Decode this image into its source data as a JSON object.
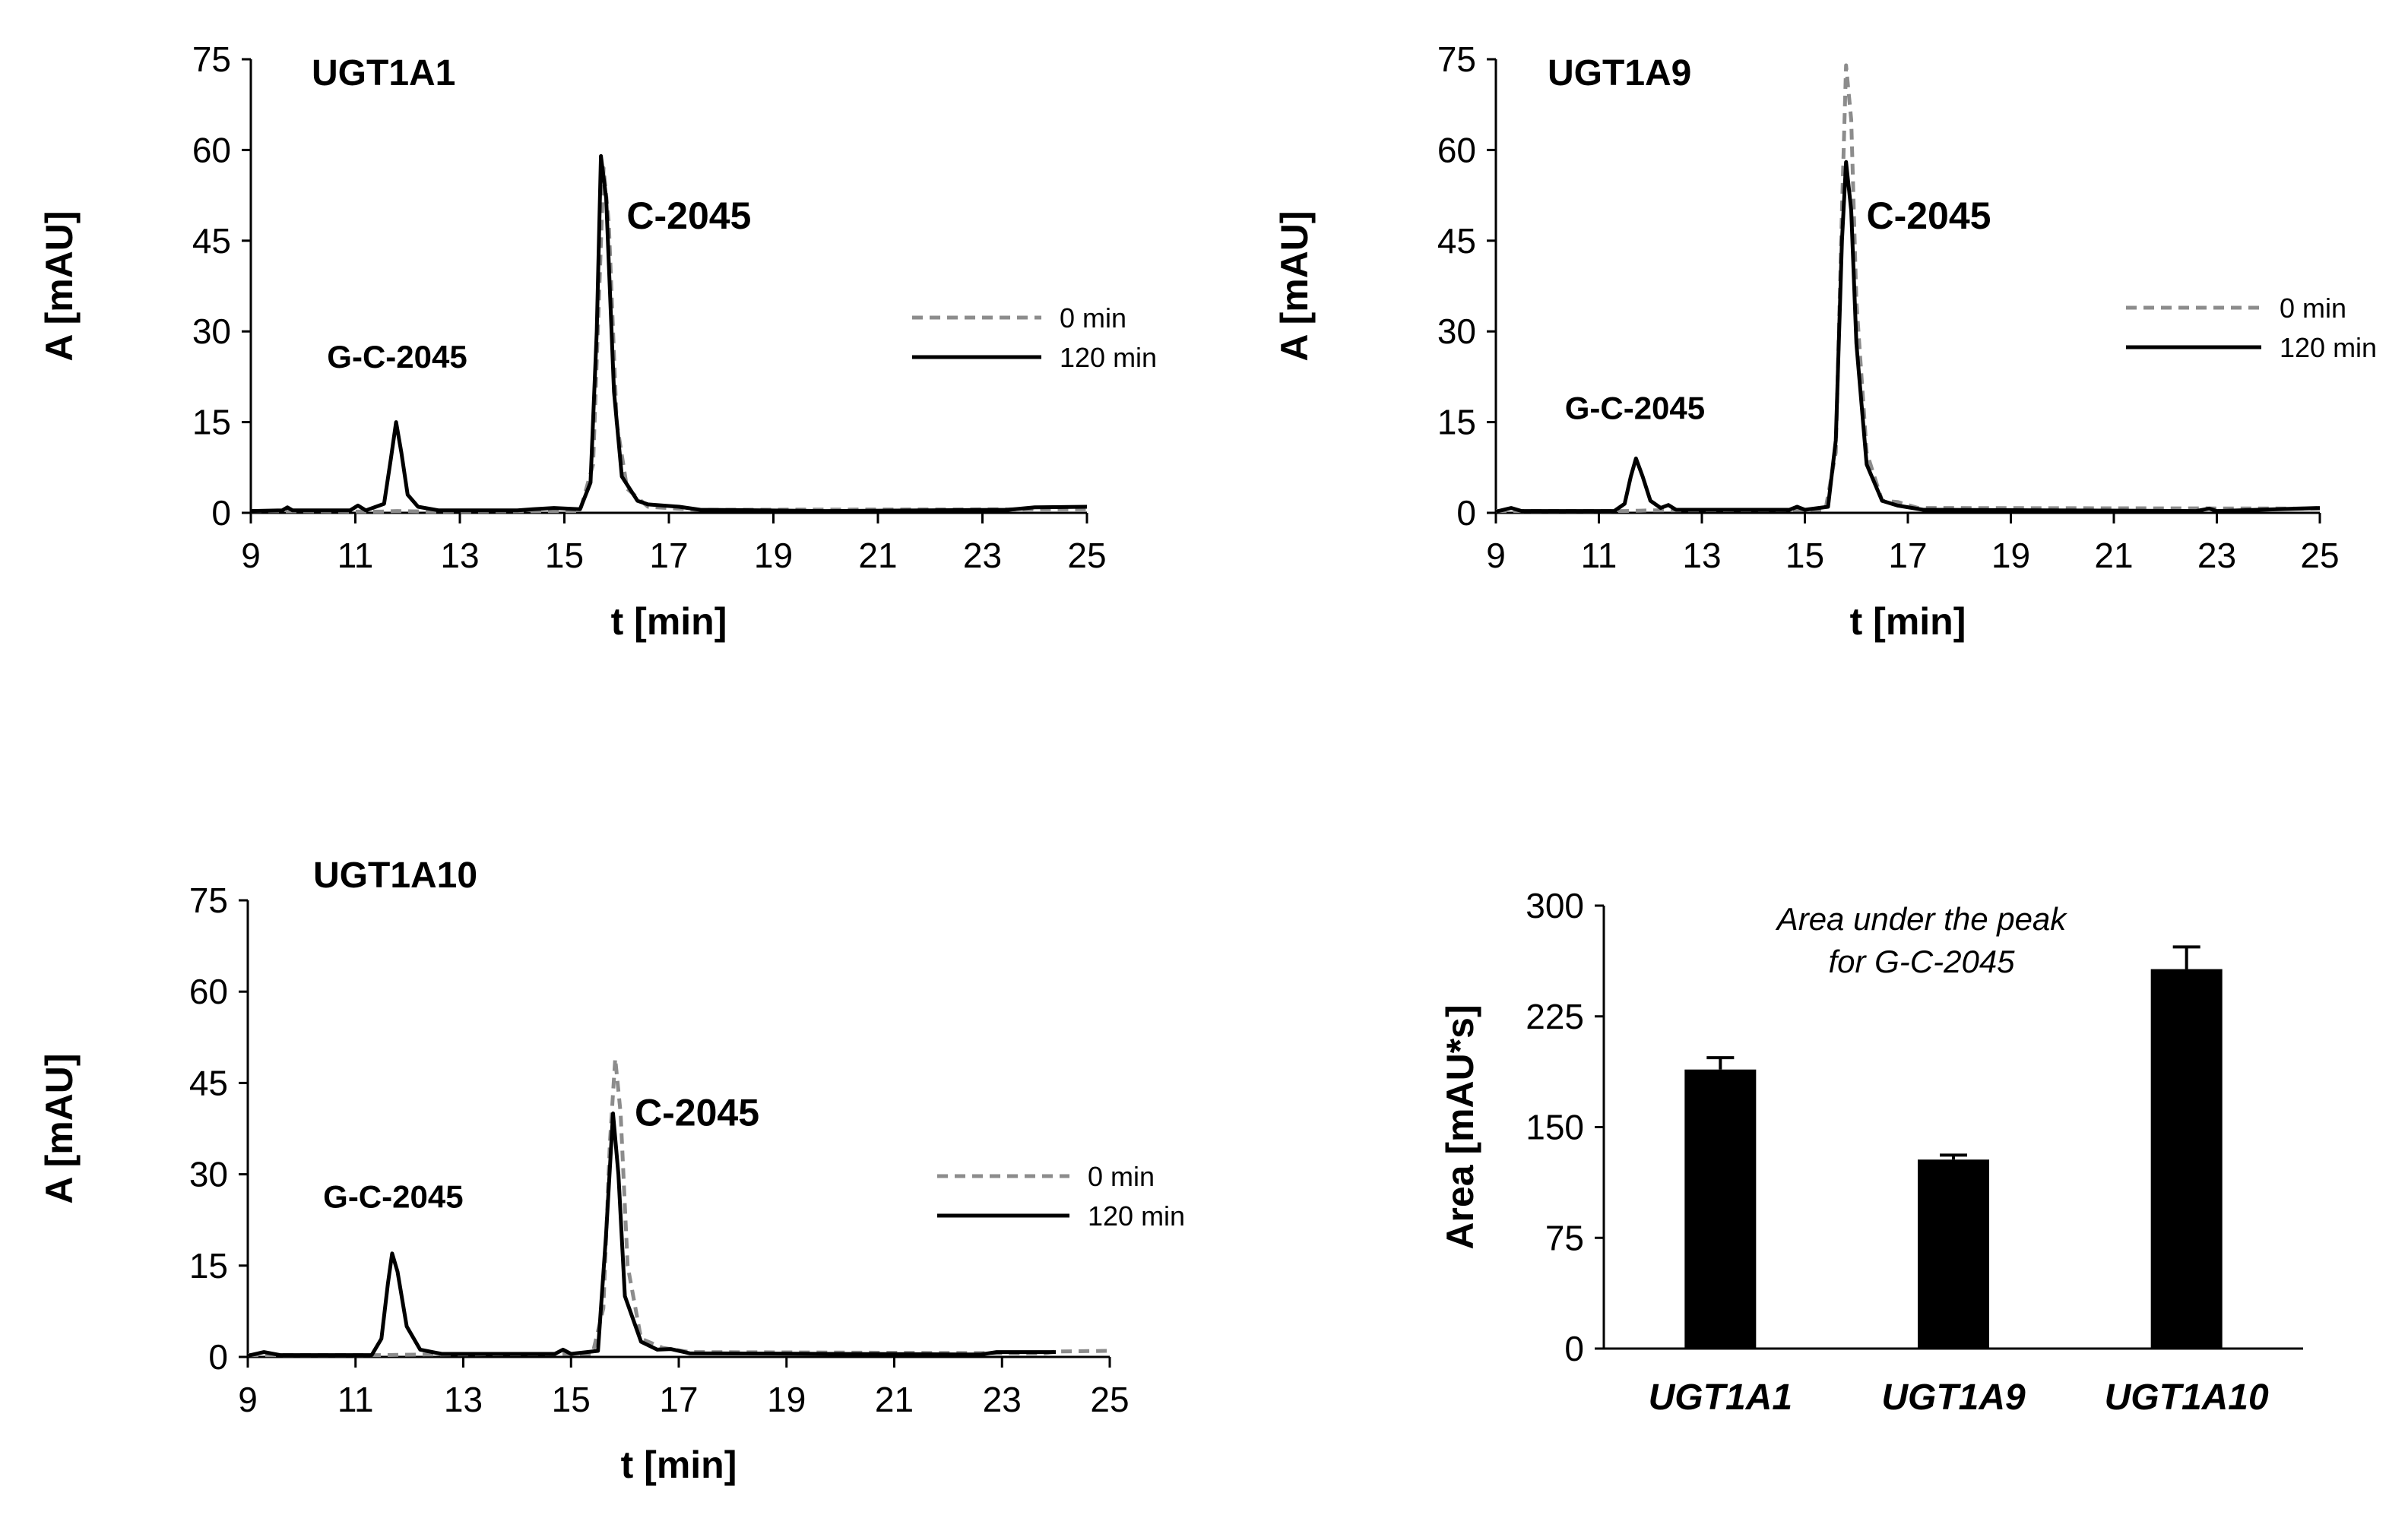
{
  "colors": {
    "black": "#000000",
    "gray": "#8c8c8c"
  },
  "chart_data": [
    {
      "type": "line",
      "id": "ugt1a1",
      "title": "UGT1A1",
      "xlabel": "t [min]",
      "ylabel": "A [mAU]",
      "xlim": [
        9,
        25
      ],
      "ylim": [
        0,
        75
      ],
      "xticks": [
        "9",
        "11",
        "13",
        "15",
        "17",
        "19",
        "21",
        "23",
        "25"
      ],
      "yticks": [
        "0",
        "15",
        "30",
        "45",
        "60",
        "75"
      ],
      "legend": {
        "position": "right",
        "items": [
          "0 min",
          "120 min"
        ]
      },
      "annotations": [
        {
          "text": "G-C-2045",
          "x": 11.8,
          "y": 24
        },
        {
          "text": "C-2045",
          "x": 16.6,
          "y": 47
        }
      ],
      "series": [
        {
          "name": "0 min",
          "style": "dashed",
          "color": "gray",
          "points": [
            [
              9,
              0.3
            ],
            [
              11.5,
              0.2
            ],
            [
              11.8,
              0.3
            ],
            [
              12.5,
              0.2
            ],
            [
              15.3,
              0.3
            ],
            [
              15.55,
              8
            ],
            [
              15.68,
              40
            ],
            [
              15.75,
              57
            ],
            [
              15.85,
              48
            ],
            [
              16.0,
              15
            ],
            [
              16.2,
              4
            ],
            [
              16.6,
              1
            ],
            [
              17.5,
              0.5
            ],
            [
              25,
              0.6
            ]
          ]
        },
        {
          "name": "120 min",
          "style": "solid",
          "color": "black",
          "points": [
            [
              9,
              0.3
            ],
            [
              9.6,
              0.4
            ],
            [
              9.7,
              0.9
            ],
            [
              9.8,
              0.4
            ],
            [
              10.9,
              0.4
            ],
            [
              11.05,
              1.2
            ],
            [
              11.2,
              0.4
            ],
            [
              11.55,
              1.5
            ],
            [
              11.68,
              9
            ],
            [
              11.78,
              15
            ],
            [
              11.88,
              10
            ],
            [
              12.0,
              3
            ],
            [
              12.2,
              1
            ],
            [
              12.6,
              0.4
            ],
            [
              14.1,
              0.4
            ],
            [
              14.4,
              0.6
            ],
            [
              14.8,
              0.8
            ],
            [
              15.3,
              0.6
            ],
            [
              15.5,
              5
            ],
            [
              15.62,
              30
            ],
            [
              15.7,
              59
            ],
            [
              15.8,
              52
            ],
            [
              15.95,
              20
            ],
            [
              16.1,
              6
            ],
            [
              16.4,
              2
            ],
            [
              16.6,
              1.4
            ],
            [
              17.2,
              1
            ],
            [
              17.6,
              0.5
            ],
            [
              20,
              0.3
            ],
            [
              23.5,
              0.5
            ],
            [
              24,
              0.9
            ],
            [
              25,
              1.0
            ]
          ]
        }
      ]
    },
    {
      "type": "line",
      "id": "ugt1a9",
      "title": "UGT1A9",
      "xlabel": "t [min]",
      "ylabel": "A [mAU]",
      "xlim": [
        9,
        25
      ],
      "ylim": [
        0,
        75
      ],
      "xticks": [
        "9",
        "11",
        "13",
        "15",
        "17",
        "19",
        "21",
        "23",
        "25"
      ],
      "yticks": [
        "0",
        "15",
        "30",
        "45",
        "60",
        "75"
      ],
      "legend": {
        "position": "right",
        "items": [
          "0 min",
          "120 min"
        ]
      },
      "annotations": [
        {
          "text": "G-C-2045",
          "x": 11.7,
          "y": 15.5
        },
        {
          "text": "C-2045",
          "x": 16.7,
          "y": 47
        }
      ],
      "series": [
        {
          "name": "0 min",
          "style": "dashed",
          "color": "gray",
          "points": [
            [
              9,
              0.3
            ],
            [
              11.5,
              0.3
            ],
            [
              12.0,
              0.4
            ],
            [
              15.4,
              0.5
            ],
            [
              15.6,
              10
            ],
            [
              15.72,
              50
            ],
            [
              15.8,
              74
            ],
            [
              15.9,
              65
            ],
            [
              16.0,
              35
            ],
            [
              16.2,
              10
            ],
            [
              16.5,
              2
            ],
            [
              16.8,
              1.8
            ],
            [
              17.2,
              0.8
            ],
            [
              25,
              0.7
            ]
          ]
        },
        {
          "name": "120 min",
          "style": "solid",
          "color": "black",
          "points": [
            [
              9,
              0.2
            ],
            [
              9.3,
              0.8
            ],
            [
              9.5,
              0.3
            ],
            [
              11.3,
              0.3
            ],
            [
              11.5,
              1.5
            ],
            [
              11.62,
              6
            ],
            [
              11.72,
              9
            ],
            [
              11.85,
              6
            ],
            [
              12.0,
              2
            ],
            [
              12.2,
              0.8
            ],
            [
              12.35,
              1.3
            ],
            [
              12.5,
              0.5
            ],
            [
              14.7,
              0.5
            ],
            [
              14.85,
              1.0
            ],
            [
              15.0,
              0.5
            ],
            [
              15.45,
              1
            ],
            [
              15.6,
              12
            ],
            [
              15.72,
              45
            ],
            [
              15.8,
              58
            ],
            [
              15.9,
              50
            ],
            [
              16.0,
              28
            ],
            [
              16.2,
              8
            ],
            [
              16.5,
              2
            ],
            [
              16.8,
              1.2
            ],
            [
              17.3,
              0.5
            ],
            [
              22.6,
              0.3
            ],
            [
              22.85,
              0.7
            ],
            [
              23.0,
              0.3
            ],
            [
              25,
              0.8
            ]
          ]
        }
      ]
    },
    {
      "type": "line",
      "id": "ugt1a10",
      "title": "UGT1A10",
      "xlabel": "t [min]",
      "ylabel": "A [mAU]",
      "xlim": [
        9,
        25
      ],
      "ylim": [
        0,
        75
      ],
      "xticks": [
        "9",
        "11",
        "13",
        "15",
        "17",
        "19",
        "21",
        "23",
        "25"
      ],
      "yticks": [
        "0",
        "15",
        "30",
        "45",
        "60",
        "75"
      ],
      "legend": {
        "position": "right",
        "items": [
          "0 min",
          "120 min"
        ]
      },
      "annotations": [
        {
          "text": "G-C-2045",
          "x": 11.7,
          "y": 24.5
        },
        {
          "text": "C-2045",
          "x": 16.8,
          "y": 38
        }
      ],
      "series": [
        {
          "name": "0 min",
          "style": "dashed",
          "color": "gray",
          "points": [
            [
              9,
              0.3
            ],
            [
              11.5,
              0.3
            ],
            [
              12.3,
              0.4
            ],
            [
              15.4,
              0.5
            ],
            [
              15.6,
              8
            ],
            [
              15.72,
              35
            ],
            [
              15.82,
              49
            ],
            [
              15.92,
              40
            ],
            [
              16.05,
              15
            ],
            [
              16.3,
              3
            ],
            [
              16.7,
              1.5
            ],
            [
              17.2,
              0.8
            ],
            [
              23.8,
              0.6
            ],
            [
              24.0,
              0.9
            ],
            [
              25,
              1.0
            ]
          ]
        },
        {
          "name": "120 min",
          "style": "solid",
          "color": "black",
          "points": [
            [
              9,
              0.2
            ],
            [
              9.3,
              0.8
            ],
            [
              9.6,
              0.3
            ],
            [
              11.3,
              0.3
            ],
            [
              11.48,
              3
            ],
            [
              11.6,
              12
            ],
            [
              11.68,
              17
            ],
            [
              11.78,
              14
            ],
            [
              11.95,
              5
            ],
            [
              12.2,
              1.2
            ],
            [
              12.6,
              0.5
            ],
            [
              14.7,
              0.5
            ],
            [
              14.85,
              1.2
            ],
            [
              15.0,
              0.5
            ],
            [
              15.5,
              1
            ],
            [
              15.65,
              20
            ],
            [
              15.78,
              40
            ],
            [
              15.88,
              30
            ],
            [
              16.0,
              10
            ],
            [
              16.3,
              2.5
            ],
            [
              16.6,
              1.2
            ],
            [
              16.85,
              1.3
            ],
            [
              17.2,
              0.6
            ],
            [
              22.6,
              0.4
            ],
            [
              22.9,
              0.8
            ],
            [
              24.0,
              0.8
            ]
          ]
        }
      ]
    },
    {
      "type": "bar",
      "id": "area",
      "title": "Area under the peak for G-C-2045",
      "title_lines": [
        "Area under the peak",
        "for G-C-2045"
      ],
      "xlabel": "",
      "ylabel": "Area [mAU*s]",
      "ylim": [
        0,
        300
      ],
      "yticks": [
        "0",
        "75",
        "150",
        "225",
        "300"
      ],
      "categories": [
        "UGT1A1",
        "UGT1A9",
        "UGT1A10"
      ],
      "values": [
        189,
        128,
        257
      ],
      "errors": [
        8,
        3,
        15
      ]
    }
  ]
}
